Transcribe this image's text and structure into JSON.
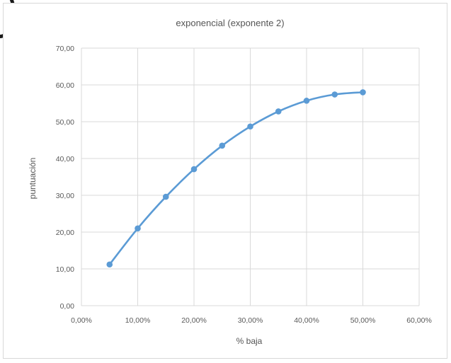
{
  "chart_data": {
    "type": "line",
    "title": "exponencial (exponente 2)",
    "xlabel": "% baja",
    "ylabel": "puntuación",
    "x_ticks": [
      "0,00%",
      "10,00%",
      "20,00%",
      "30,00%",
      "40,00%",
      "50,00%",
      "60,00%"
    ],
    "y_ticks": [
      "0,00",
      "10,00",
      "20,00",
      "30,00",
      "40,00",
      "50,00",
      "60,00",
      "70,00"
    ],
    "xlim": [
      0,
      0.6
    ],
    "ylim": [
      0,
      70
    ],
    "grid": true,
    "legend": "none",
    "series": [
      {
        "color": "#5b9bd5",
        "x": [
          0.05,
          0.1,
          0.15,
          0.2,
          0.25,
          0.3,
          0.35,
          0.4,
          0.45,
          0.5
        ],
        "y": [
          11.2,
          21.0,
          29.6,
          37.1,
          43.5,
          48.7,
          52.8,
          55.7,
          57.4,
          58.0
        ]
      }
    ]
  }
}
